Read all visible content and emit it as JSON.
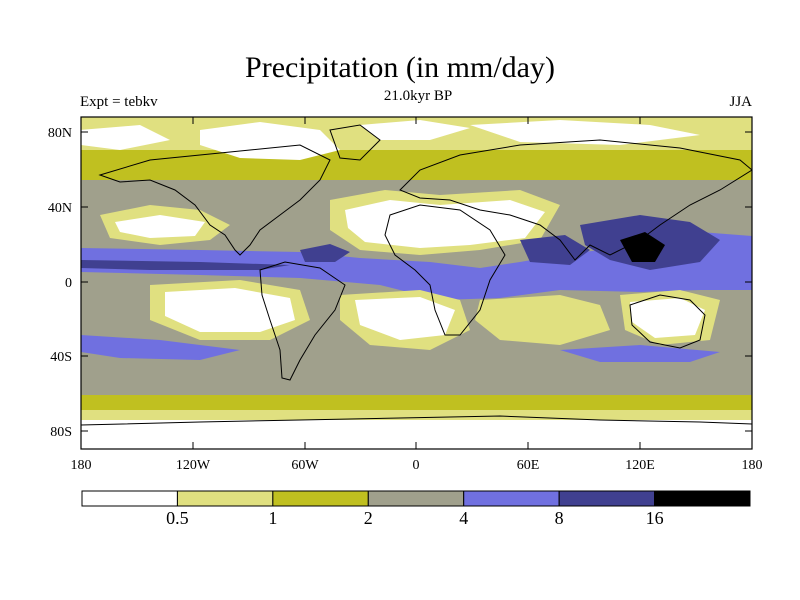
{
  "title": "Precipitation (in mm/day)",
  "subtitle": "21.0kyr BP",
  "left_label": "Expt = tebkv",
  "right_label": "JJA",
  "lat_ticks": [
    "80N",
    "40N",
    "0",
    "40S",
    "80S"
  ],
  "lon_ticks": [
    "180",
    "120W",
    "60W",
    "0",
    "60E",
    "120E",
    "180"
  ],
  "colorbar": {
    "colors": [
      "#ffffff",
      "#e0e080",
      "#c0c020",
      "#a0a08c",
      "#7070e0",
      "#404090",
      "#000000"
    ],
    "labels": [
      "0.5",
      "1",
      "2",
      "4",
      "8",
      "16"
    ]
  },
  "chart_data": {
    "type": "heatmap",
    "title": "Precipitation (in mm/day)",
    "subtitle": "21.0kyr BP",
    "season": "JJA",
    "experiment": "Expt = tebkv",
    "xlim": [
      -180,
      180
    ],
    "ylim": [
      -90,
      90
    ],
    "levels": [
      0.5,
      1,
      2,
      4,
      8,
      16
    ],
    "colors": [
      "#ffffff",
      "#e0e080",
      "#c0c020",
      "#a0a08c",
      "#7070e0",
      "#404090",
      "#000000"
    ]
  }
}
